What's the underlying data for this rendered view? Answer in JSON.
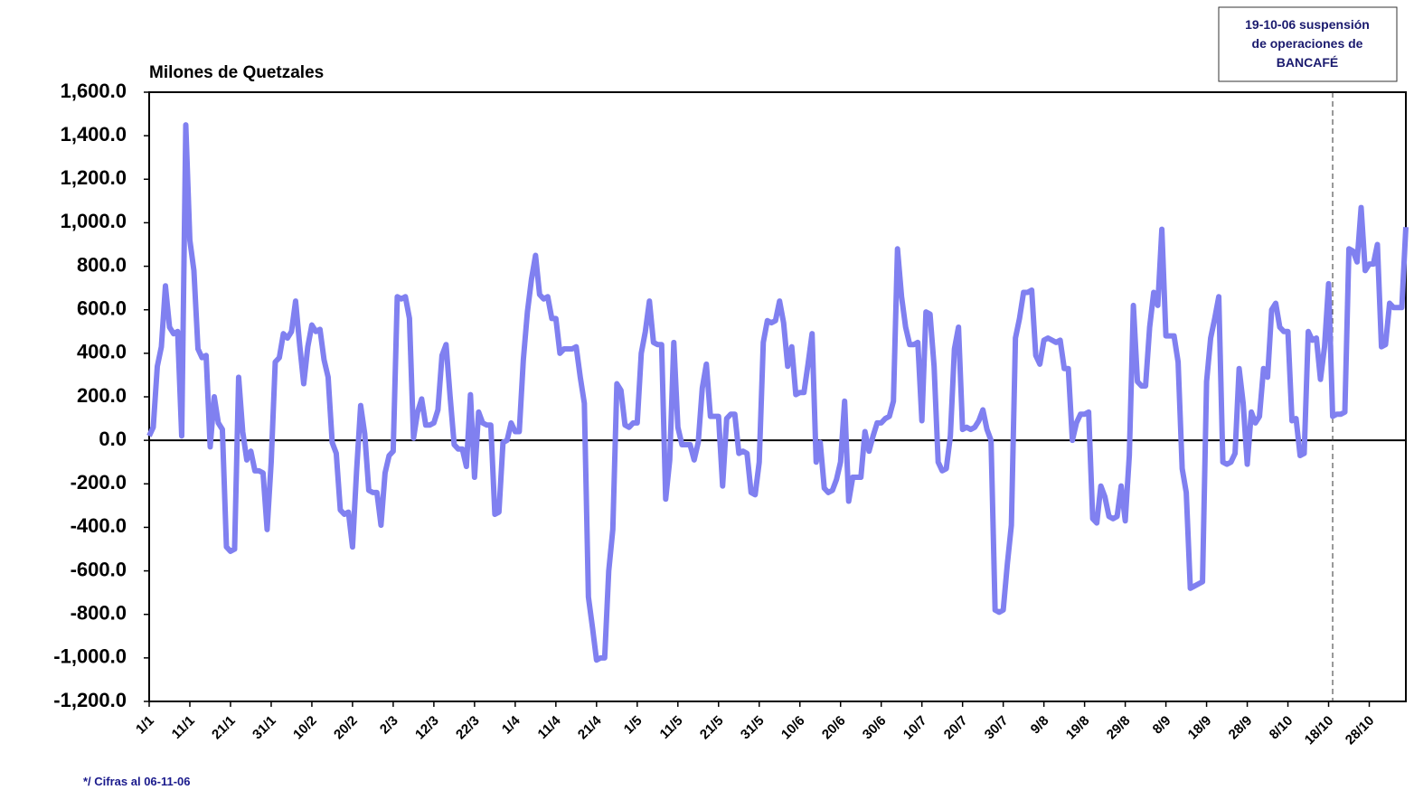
{
  "chart_data": {
    "type": "line",
    "y_label": "Milones de Quetzales",
    "footnote": "*/ Cifras al 06-11-06",
    "annotation": {
      "lines": [
        "19-10-06 suspensión",
        "de operaciones de",
        "BANCAFÉ"
      ],
      "x": 291
    },
    "xlim": [
      0,
      309
    ],
    "ylim": [
      -1200,
      1600
    ],
    "xticks": [
      {
        "value": 0,
        "label": "1/1"
      },
      {
        "value": 10,
        "label": "11/1"
      },
      {
        "value": 20,
        "label": "21/1"
      },
      {
        "value": 30,
        "label": "31/1"
      },
      {
        "value": 40,
        "label": "10/2"
      },
      {
        "value": 50,
        "label": "20/2"
      },
      {
        "value": 60,
        "label": "2/3"
      },
      {
        "value": 70,
        "label": "12/3"
      },
      {
        "value": 80,
        "label": "22/3"
      },
      {
        "value": 90,
        "label": "1/4"
      },
      {
        "value": 100,
        "label": "11/4"
      },
      {
        "value": 110,
        "label": "21/4"
      },
      {
        "value": 120,
        "label": "1/5"
      },
      {
        "value": 130,
        "label": "11/5"
      },
      {
        "value": 140,
        "label": "21/5"
      },
      {
        "value": 150,
        "label": "31/5"
      },
      {
        "value": 160,
        "label": "10/6"
      },
      {
        "value": 170,
        "label": "20/6"
      },
      {
        "value": 180,
        "label": "30/6"
      },
      {
        "value": 190,
        "label": "10/7"
      },
      {
        "value": 200,
        "label": "20/7"
      },
      {
        "value": 210,
        "label": "30/7"
      },
      {
        "value": 220,
        "label": "9/8"
      },
      {
        "value": 230,
        "label": "19/8"
      },
      {
        "value": 240,
        "label": "29/8"
      },
      {
        "value": 250,
        "label": "8/9"
      },
      {
        "value": 260,
        "label": "18/9"
      },
      {
        "value": 270,
        "label": "28/9"
      },
      {
        "value": 280,
        "label": "8/10"
      },
      {
        "value": 290,
        "label": "18/10"
      },
      {
        "value": 300,
        "label": "28/10"
      }
    ],
    "yticks": [
      {
        "value": 1600,
        "label": "1,600.0"
      },
      {
        "value": 1400,
        "label": "1,400.0"
      },
      {
        "value": 1200,
        "label": "1,200.0"
      },
      {
        "value": 1000,
        "label": "1,000.0"
      },
      {
        "value": 800,
        "label": "800.0"
      },
      {
        "value": 600,
        "label": "600.0"
      },
      {
        "value": 400,
        "label": "400.0"
      },
      {
        "value": 200,
        "label": "200.0"
      },
      {
        "value": 0,
        "label": "0.0"
      },
      {
        "value": -200,
        "label": "-200.0"
      },
      {
        "value": -400,
        "label": "-400.0"
      },
      {
        "value": -600,
        "label": "-600.0"
      },
      {
        "value": -800,
        "label": "-800.0"
      },
      {
        "value": -1000,
        "label": "-1,000.0"
      },
      {
        "value": -1200,
        "label": "-1,200.0"
      }
    ],
    "x": [
      0,
      1,
      2,
      3,
      4,
      5,
      6,
      7,
      8,
      9,
      10,
      11,
      12,
      13,
      14,
      15,
      16,
      17,
      18,
      19,
      20,
      21,
      22,
      23,
      24,
      25,
      26,
      27,
      28,
      29,
      30,
      31,
      32,
      33,
      34,
      35,
      36,
      37,
      38,
      39,
      40,
      41,
      42,
      43,
      44,
      45,
      46,
      47,
      48,
      49,
      50,
      51,
      52,
      53,
      54,
      55,
      56,
      57,
      58,
      59,
      60,
      61,
      62,
      63,
      64,
      65,
      66,
      67,
      68,
      69,
      70,
      71,
      72,
      73,
      74,
      75,
      76,
      77,
      78,
      79,
      80,
      81,
      82,
      83,
      84,
      85,
      86,
      87,
      88,
      89,
      90,
      91,
      92,
      93,
      94,
      95,
      96,
      97,
      98,
      99,
      100,
      101,
      102,
      103,
      104,
      105,
      106,
      107,
      108,
      109,
      110,
      111,
      112,
      113,
      114,
      115,
      116,
      117,
      118,
      119,
      120,
      121,
      122,
      123,
      124,
      125,
      126,
      127,
      128,
      129,
      130,
      131,
      132,
      133,
      134,
      135,
      136,
      137,
      138,
      139,
      140,
      141,
      142,
      143,
      144,
      145,
      146,
      147,
      148,
      149,
      150,
      151,
      152,
      153,
      154,
      155,
      156,
      157,
      158,
      159,
      160,
      161,
      162,
      163,
      164,
      165,
      166,
      167,
      168,
      169,
      170,
      171,
      172,
      173,
      174,
      175,
      176,
      177,
      178,
      179,
      180,
      181,
      182,
      183,
      184,
      185,
      186,
      187,
      188,
      189,
      190,
      191,
      192,
      193,
      194,
      195,
      196,
      197,
      198,
      199,
      200,
      201,
      202,
      203,
      204,
      205,
      206,
      207,
      208,
      209,
      210,
      211,
      212,
      213,
      214,
      215,
      216,
      217,
      218,
      219,
      220,
      221,
      222,
      223,
      224,
      225,
      226,
      227,
      228,
      229,
      230,
      231,
      232,
      233,
      234,
      235,
      236,
      237,
      238,
      239,
      240,
      241,
      242,
      243,
      244,
      245,
      246,
      247,
      248,
      249,
      250,
      251,
      252,
      253,
      254,
      255,
      256,
      257,
      258,
      259,
      260,
      261,
      262,
      263,
      264,
      265,
      266,
      267,
      268,
      269,
      270,
      271,
      272,
      273,
      274,
      275,
      276,
      277,
      278,
      279,
      280,
      281,
      282,
      283,
      284,
      285,
      286,
      287,
      288,
      289,
      290,
      291,
      292,
      293,
      294,
      295,
      296,
      297,
      298,
      299,
      300,
      301,
      302,
      303,
      304,
      305,
      306,
      307,
      308,
      309
    ],
    "series": [
      {
        "color": "#8080f0",
        "values": [
          20,
          60,
          340,
          430,
          710,
          520,
          490,
          500,
          20,
          1450,
          920,
          780,
          420,
          380,
          390,
          -30,
          200,
          80,
          50,
          -490,
          -510,
          -500,
          290,
          40,
          -90,
          -50,
          -140,
          -140,
          -150,
          -410,
          -100,
          360,
          380,
          490,
          470,
          500,
          640,
          440,
          260,
          430,
          530,
          500,
          510,
          370,
          290,
          -10,
          -60,
          -320,
          -340,
          -330,
          -490,
          -140,
          160,
          30,
          -230,
          -240,
          -240,
          -390,
          -150,
          -70,
          -50,
          660,
          650,
          660,
          560,
          10,
          130,
          190,
          70,
          70,
          80,
          140,
          390,
          440,
          200,
          -20,
          -40,
          -40,
          -120,
          210,
          -170,
          130,
          80,
          70,
          70,
          -340,
          -330,
          -10,
          0,
          80,
          40,
          40,
          370,
          590,
          740,
          850,
          670,
          650,
          660,
          560,
          560,
          400,
          420,
          420,
          420,
          430,
          290,
          170,
          -720,
          -860,
          -1010,
          -1000,
          -1000,
          -600,
          -410,
          260,
          230,
          70,
          60,
          80,
          80,
          400,
          500,
          640,
          450,
          440,
          440,
          -270,
          -90,
          450,
          60,
          -20,
          -20,
          -20,
          -90,
          -10,
          240,
          350,
          110,
          110,
          110,
          -210,
          100,
          120,
          120,
          -60,
          -50,
          -60,
          -240,
          -250,
          -100,
          450,
          550,
          540,
          550,
          640,
          540,
          340,
          430,
          210,
          220,
          220,
          350,
          490,
          -100,
          -10,
          -220,
          -240,
          -230,
          -180,
          -100,
          180,
          -280,
          -170,
          -170,
          -170,
          40,
          -50,
          20,
          80,
          80,
          100,
          110,
          180,
          880,
          660,
          520,
          440,
          440,
          450,
          90,
          590,
          580,
          340,
          -100,
          -140,
          -130,
          20,
          420,
          520,
          50,
          60,
          50,
          60,
          90,
          140,
          50,
          0,
          -780,
          -790,
          -780,
          -570,
          -390,
          470,
          560,
          680,
          680,
          690,
          390,
          350,
          460,
          470,
          460,
          450,
          460,
          330,
          330,
          0,
          80,
          120,
          120,
          130,
          -360,
          -380,
          -210,
          -260,
          -350,
          -360,
          -350,
          -210,
          -370,
          -70,
          620,
          270,
          250,
          250,
          520,
          680,
          620,
          970,
          480,
          480,
          480,
          360,
          -130,
          -240,
          -680,
          -670,
          -660,
          -650,
          270,
          470,
          560,
          660,
          -100,
          -110,
          -100,
          -60,
          330,
          170,
          -110,
          130,
          80,
          110,
          330,
          290,
          600,
          630,
          520,
          500,
          500,
          90,
          100,
          -70,
          -60,
          500,
          460,
          470,
          280,
          430,
          720,
          110,
          120,
          120,
          130,
          880,
          870,
          820,
          1070,
          780,
          810,
          810,
          900,
          430,
          440,
          630,
          610,
          610,
          610,
          980
        ]
      }
    ]
  }
}
